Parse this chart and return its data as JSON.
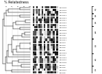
{
  "title": "% Relatedness",
  "title_fontsize": 3.5,
  "background_color": "#ffffff",
  "n_strains": 27,
  "gel_cols": 14,
  "gel_pattern": [
    [
      1,
      1,
      0,
      0,
      1,
      0,
      1,
      0,
      1,
      0,
      0,
      1,
      0,
      1
    ],
    [
      1,
      1,
      0,
      0,
      1,
      0,
      1,
      0,
      1,
      0,
      0,
      1,
      0,
      1
    ],
    [
      1,
      1,
      0,
      1,
      1,
      0,
      1,
      0,
      1,
      0,
      1,
      1,
      0,
      1
    ],
    [
      1,
      1,
      0,
      1,
      1,
      0,
      1,
      0,
      1,
      0,
      1,
      1,
      0,
      1
    ],
    [
      1,
      1,
      0,
      1,
      1,
      0,
      0,
      0,
      1,
      1,
      1,
      1,
      1,
      0
    ],
    [
      1,
      1,
      0,
      0,
      1,
      1,
      0,
      1,
      1,
      1,
      0,
      1,
      1,
      0
    ],
    [
      0,
      1,
      1,
      0,
      1,
      1,
      0,
      1,
      1,
      1,
      0,
      1,
      1,
      0
    ],
    [
      1,
      1,
      0,
      0,
      1,
      1,
      0,
      0,
      1,
      1,
      0,
      1,
      0,
      1
    ],
    [
      1,
      1,
      0,
      0,
      1,
      0,
      1,
      0,
      1,
      1,
      0,
      0,
      1,
      1
    ],
    [
      1,
      0,
      1,
      0,
      1,
      0,
      1,
      1,
      1,
      0,
      1,
      0,
      1,
      1
    ],
    [
      1,
      0,
      1,
      1,
      1,
      0,
      1,
      1,
      1,
      0,
      1,
      0,
      1,
      1
    ],
    [
      1,
      0,
      1,
      1,
      1,
      0,
      1,
      0,
      1,
      0,
      1,
      1,
      1,
      0
    ],
    [
      1,
      0,
      1,
      0,
      0,
      1,
      1,
      0,
      1,
      0,
      1,
      1,
      0,
      1
    ],
    [
      1,
      0,
      0,
      1,
      0,
      1,
      1,
      0,
      1,
      0,
      1,
      1,
      0,
      1
    ],
    [
      0,
      1,
      1,
      0,
      1,
      0,
      0,
      1,
      1,
      0,
      1,
      1,
      0,
      1
    ],
    [
      1,
      1,
      0,
      0,
      1,
      0,
      1,
      1,
      1,
      0,
      0,
      1,
      1,
      1
    ],
    [
      1,
      1,
      0,
      0,
      1,
      0,
      0,
      1,
      0,
      1,
      1,
      1,
      0,
      1
    ],
    [
      1,
      1,
      1,
      0,
      1,
      0,
      0,
      0,
      1,
      1,
      0,
      1,
      0,
      1
    ],
    [
      1,
      1,
      0,
      0,
      1,
      0,
      0,
      0,
      1,
      1,
      0,
      1,
      0,
      1
    ],
    [
      1,
      1,
      0,
      0,
      1,
      1,
      0,
      0,
      1,
      0,
      1,
      1,
      0,
      0
    ],
    [
      1,
      1,
      0,
      0,
      1,
      1,
      0,
      0,
      1,
      0,
      0,
      1,
      1,
      0
    ],
    [
      0,
      1,
      1,
      0,
      1,
      0,
      1,
      0,
      1,
      0,
      1,
      0,
      1,
      1
    ],
    [
      0,
      1,
      1,
      1,
      1,
      0,
      1,
      0,
      1,
      0,
      1,
      0,
      1,
      0
    ],
    [
      1,
      0,
      1,
      1,
      0,
      1,
      0,
      1,
      1,
      0,
      0,
      1,
      1,
      0
    ],
    [
      1,
      0,
      1,
      0,
      0,
      1,
      0,
      1,
      1,
      0,
      1,
      1,
      1,
      0
    ],
    [
      1,
      0,
      1,
      1,
      0,
      1,
      0,
      0,
      1,
      1,
      0,
      0,
      1,
      1
    ],
    [
      1,
      0,
      0,
      1,
      0,
      0,
      1,
      0,
      1,
      1,
      0,
      1,
      1,
      0
    ]
  ],
  "strain_labels": [
    "BpCHR1",
    "BpCHR2",
    "BpCHR3",
    "BpCHR4",
    "BpCHR5",
    "BpCHR6",
    "BpCHR7",
    "BpCHR8",
    "BpCHR9",
    "BpCHR10",
    "BpCHR11",
    "BpCHR12",
    "BpCHR13",
    "BpCHR14",
    "BpCHR15",
    "BpCHR16",
    "BpCHR17",
    "BpCHR18",
    "BpCHR19",
    "BpCHR20",
    "BpCHR21",
    "BpCHR22",
    "BpCHR23",
    "BpCHR24",
    "BpCHR25",
    "BpCHR26",
    "BpCHR27"
  ],
  "tick_positions": [
    100,
    90,
    80,
    70,
    60
  ],
  "tick_labels": [
    "100",
    "90",
    "80",
    "70",
    "60"
  ],
  "text_color": "#000000",
  "gel_seed": 0
}
